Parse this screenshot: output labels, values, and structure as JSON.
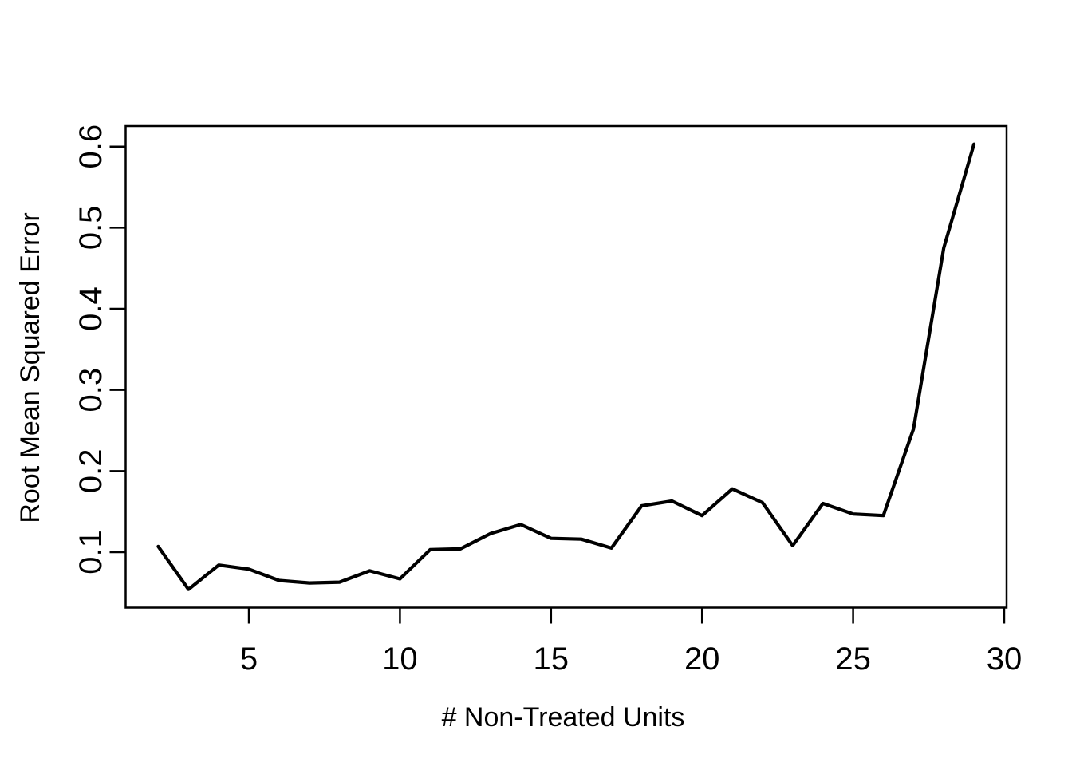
{
  "chart_data": {
    "type": "line",
    "title": "",
    "xlabel": "# Non-Treated Units",
    "ylabel": "Root Mean Squared Error",
    "x": [
      2,
      3,
      4,
      5,
      6,
      7,
      8,
      9,
      10,
      11,
      12,
      13,
      14,
      15,
      16,
      17,
      18,
      19,
      20,
      21,
      22,
      23,
      24,
      25,
      26,
      27,
      28,
      29
    ],
    "values": [
      0.107,
      0.054,
      0.084,
      0.079,
      0.065,
      0.062,
      0.063,
      0.077,
      0.067,
      0.103,
      0.104,
      0.123,
      0.134,
      0.117,
      0.116,
      0.105,
      0.157,
      0.163,
      0.145,
      0.178,
      0.161,
      0.108,
      0.16,
      0.147,
      0.145,
      0.252,
      0.475,
      0.603
    ],
    "xlim": [
      0.92,
      30.08
    ],
    "ylim": [
      0.0316,
      0.6253
    ],
    "xticks": [
      5,
      10,
      15,
      20,
      25,
      30
    ],
    "xtick_labels": [
      "5",
      "10",
      "15",
      "20",
      "25",
      "30"
    ],
    "yticks": [
      0.1,
      0.2,
      0.3,
      0.4,
      0.5,
      0.6
    ],
    "ytick_labels": [
      "0.1",
      "0.2",
      "0.3",
      "0.4",
      "0.5",
      "0.6"
    ],
    "grid": false,
    "legend_position": "none",
    "line_color": "#000000",
    "axis_color": "#000000",
    "background_color": "#ffffff"
  }
}
